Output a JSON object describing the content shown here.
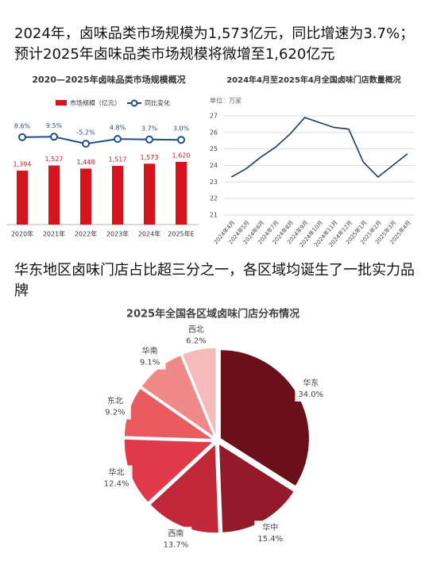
{
  "headline_1": "2024年，卤味品类市场规模为1,573亿元，同比增速为3.7%；预计2025年卤味品类市场规模将微增至1,620亿元",
  "headline_2": "华东地区卤味门店占比超三分之一，各区域均诞生了一批实力品牌",
  "chart_data": [
    {
      "type": "bar",
      "title": "2020—2025年卤味品类市场规模概况",
      "categories": [
        "2020年",
        "2021年",
        "2022年",
        "2023年",
        "2024年",
        "2025年E"
      ],
      "legend": "top",
      "series": [
        {
          "name": "市场规模（亿元）",
          "color": "#d7131e",
          "values": [
            1394,
            1527,
            1448,
            1517,
            1573,
            1620
          ],
          "value_labels": [
            "1,394",
            "1,527",
            "1,448",
            "1,517",
            "1,573",
            "1,620"
          ]
        },
        {
          "name": "同比变化",
          "type": "line",
          "color": "#1f4e8c",
          "values": [
            8.6,
            9.5,
            -5.2,
            4.8,
            3.7,
            3.0
          ],
          "value_labels": [
            "8.6%",
            "9.5%",
            "-5.2%",
            "4.8%",
            "3.7%",
            "3.0%"
          ]
        }
      ]
    },
    {
      "type": "line",
      "title": "2024年4月至2025年4月全国卤味门店数量概况",
      "y_unit": "单位：万家",
      "categories": [
        "2024年4月",
        "2024年5月",
        "2024年6月",
        "2024年7月",
        "2024年8月",
        "2024年9月",
        "2024年10月",
        "2024年11月",
        "2024年12月",
        "2025年1月",
        "2025年2月",
        "2025年3月",
        "2025年4月"
      ],
      "values": [
        23.3,
        23.8,
        24.5,
        25.1,
        25.9,
        26.9,
        26.6,
        26.3,
        26.2,
        24.2,
        23.3,
        24.0,
        24.7
      ],
      "color": "#1f3a5f",
      "ylim": [
        21,
        27
      ],
      "yticks": [
        21,
        22,
        23,
        24,
        25,
        26,
        27
      ],
      "grid": true
    },
    {
      "type": "pie",
      "title": "2025年全国各区域卤味门店分布情况",
      "categories": [
        "华东",
        "华中",
        "西南",
        "华北",
        "东北",
        "华南",
        "西北"
      ],
      "values": [
        34.0,
        15.4,
        13.7,
        12.4,
        9.2,
        9.1,
        6.2
      ],
      "value_labels": [
        "34.0%",
        "15.4%",
        "13.7%",
        "12.4%",
        "9.2%",
        "9.1%",
        "6.2%"
      ],
      "colors": [
        "#6b0f1a",
        "#921a2a",
        "#c0283a",
        "#e0394a",
        "#ea5b60",
        "#f08a8a",
        "#f5baba"
      ]
    }
  ]
}
